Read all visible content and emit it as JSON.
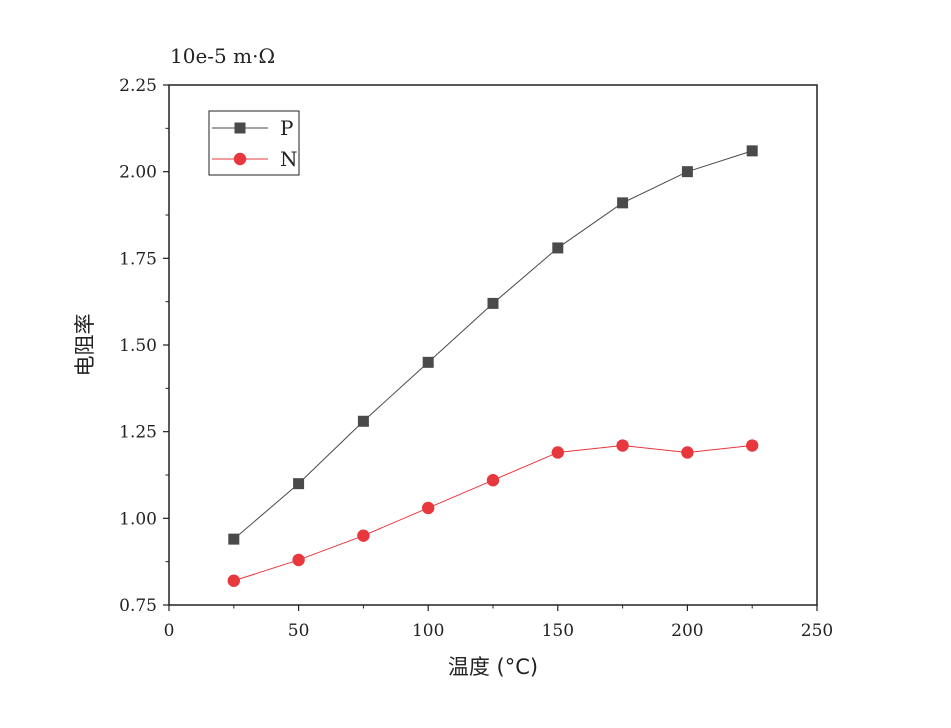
{
  "chart_data": {
    "type": "line",
    "unit_label": "10e-5 m·Ω",
    "xlabel": "温度 (°C)",
    "ylabel": "电阻率",
    "xlim": [
      0,
      250
    ],
    "ylim": [
      0.75,
      2.25
    ],
    "x_ticks": [
      "0",
      "50",
      "100",
      "150",
      "200",
      "250"
    ],
    "y_ticks": [
      "0.75",
      "1.00",
      "1.25",
      "1.50",
      "1.75",
      "2.00",
      "2.25"
    ],
    "grid": false,
    "legend_position": "top-left",
    "x": [
      25,
      50,
      75,
      100,
      125,
      150,
      175,
      200,
      225
    ],
    "series": [
      {
        "name": "P",
        "marker": "square",
        "color": "#4a4a4a",
        "values": [
          0.94,
          1.1,
          1.28,
          1.45,
          1.62,
          1.78,
          1.91,
          2.0,
          2.06
        ]
      },
      {
        "name": "N",
        "marker": "circle",
        "color": "#e8373d",
        "values": [
          0.82,
          0.88,
          0.95,
          1.03,
          1.11,
          1.19,
          1.21,
          1.19,
          1.21
        ]
      }
    ]
  }
}
